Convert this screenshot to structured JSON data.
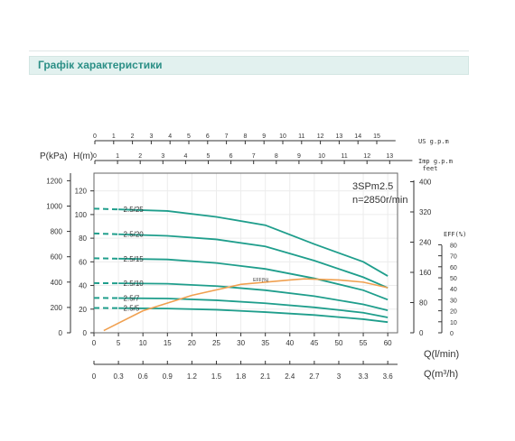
{
  "header": {
    "title": "Графік характеристики",
    "accent": "#2b8f86",
    "band": "#e2f1ef"
  },
  "chart_data": {
    "type": "line",
    "model": "3SPm2.5",
    "speed": "n=2850r/min",
    "colors": {
      "curves": "#1f9e8c",
      "eff": "#f0a050",
      "axis": "#333333",
      "grid": "#ececec",
      "frame": "#666666"
    },
    "grid": true,
    "x": {
      "label": "Q(l/min)",
      "range": [
        0,
        62
      ],
      "ticks": [
        0,
        5,
        10,
        15,
        20,
        25,
        30,
        35,
        40,
        45,
        50,
        55,
        60
      ],
      "tick_labels": [
        "0",
        "5",
        "10",
        "15",
        "20",
        "25",
        "30",
        "35",
        "40",
        "45",
        "50",
        "55",
        "60"
      ]
    },
    "y": {
      "label": "H(m)",
      "range": [
        0,
        135
      ],
      "ticks": [
        0,
        20,
        40,
        60,
        80,
        100,
        120
      ],
      "tick_labels": [
        "0",
        "20",
        "40",
        "60",
        "80",
        "100",
        "120"
      ]
    },
    "x_top": {
      "us_label": "US g.p.m",
      "us_ticks": [
        "0",
        "1",
        "2",
        "3",
        "4",
        "5",
        "6",
        "7",
        "8",
        "9",
        "10",
        "11",
        "12",
        "13",
        "14",
        "15"
      ],
      "imp_label": "Imp g.p.m",
      "imp_ticks": [
        "0",
        "1",
        "2",
        "3",
        "4",
        "5",
        "6",
        "7",
        "8",
        "9",
        "10",
        "11",
        "12",
        "13"
      ]
    },
    "x_bottom": {
      "label_prefix": "Q(m",
      "label_sup": "3",
      "label_suffix": "/h)",
      "ticks": [
        "0",
        "0.3",
        "0.6",
        "0.9",
        "1.2",
        "1.5",
        "1.8",
        "2.1",
        "2.4",
        "2.7",
        "3",
        "3.3",
        "3.6"
      ]
    },
    "y_left_kpa": {
      "label": "P(kPa)",
      "ticks": [
        "0",
        "200",
        "400",
        "600",
        "800",
        "1000",
        "1200"
      ]
    },
    "y_right_feet": {
      "label": "feet",
      "ticks": [
        "0",
        "80",
        "160",
        "240",
        "320",
        "400"
      ]
    },
    "y_right_eff": {
      "label": "EFF(%)",
      "ticks": [
        "0",
        "10",
        "20",
        "30",
        "40",
        "50",
        "60",
        "70",
        "80"
      ]
    },
    "series": [
      {
        "name": "2.5/25",
        "x": [
          0,
          15,
          25,
          35,
          45,
          55,
          60
        ],
        "y": [
          105,
          103,
          98,
          91,
          75,
          60,
          48
        ]
      },
      {
        "name": "2.5/20",
        "x": [
          0,
          15,
          25,
          35,
          45,
          55,
          60
        ],
        "y": [
          84,
          82,
          79,
          73,
          61,
          47,
          38
        ]
      },
      {
        "name": "2.5/15",
        "x": [
          0,
          15,
          25,
          35,
          45,
          55,
          60
        ],
        "y": [
          63,
          62,
          59,
          54,
          46,
          36,
          28
        ]
      },
      {
        "name": "2.5/10",
        "x": [
          0,
          15,
          25,
          35,
          45,
          55,
          60
        ],
        "y": [
          42,
          41.5,
          39.5,
          36,
          31,
          24,
          19
        ]
      },
      {
        "name": "2.5/7",
        "x": [
          0,
          15,
          25,
          35,
          45,
          55,
          60
        ],
        "y": [
          29.5,
          29,
          27.5,
          25,
          21.5,
          17,
          13
        ]
      },
      {
        "name": "2.5/5",
        "x": [
          0,
          15,
          25,
          35,
          45,
          55,
          60
        ],
        "y": [
          21,
          20.5,
          19.5,
          17.5,
          15,
          11.5,
          9
        ]
      }
    ],
    "efficiency": {
      "name": "EFF(%)",
      "x": [
        2,
        10,
        20,
        30,
        40,
        43,
        50,
        55,
        60
      ],
      "y": [
        2,
        20,
        34,
        44,
        48,
        49,
        48,
        46,
        41
      ]
    }
  }
}
